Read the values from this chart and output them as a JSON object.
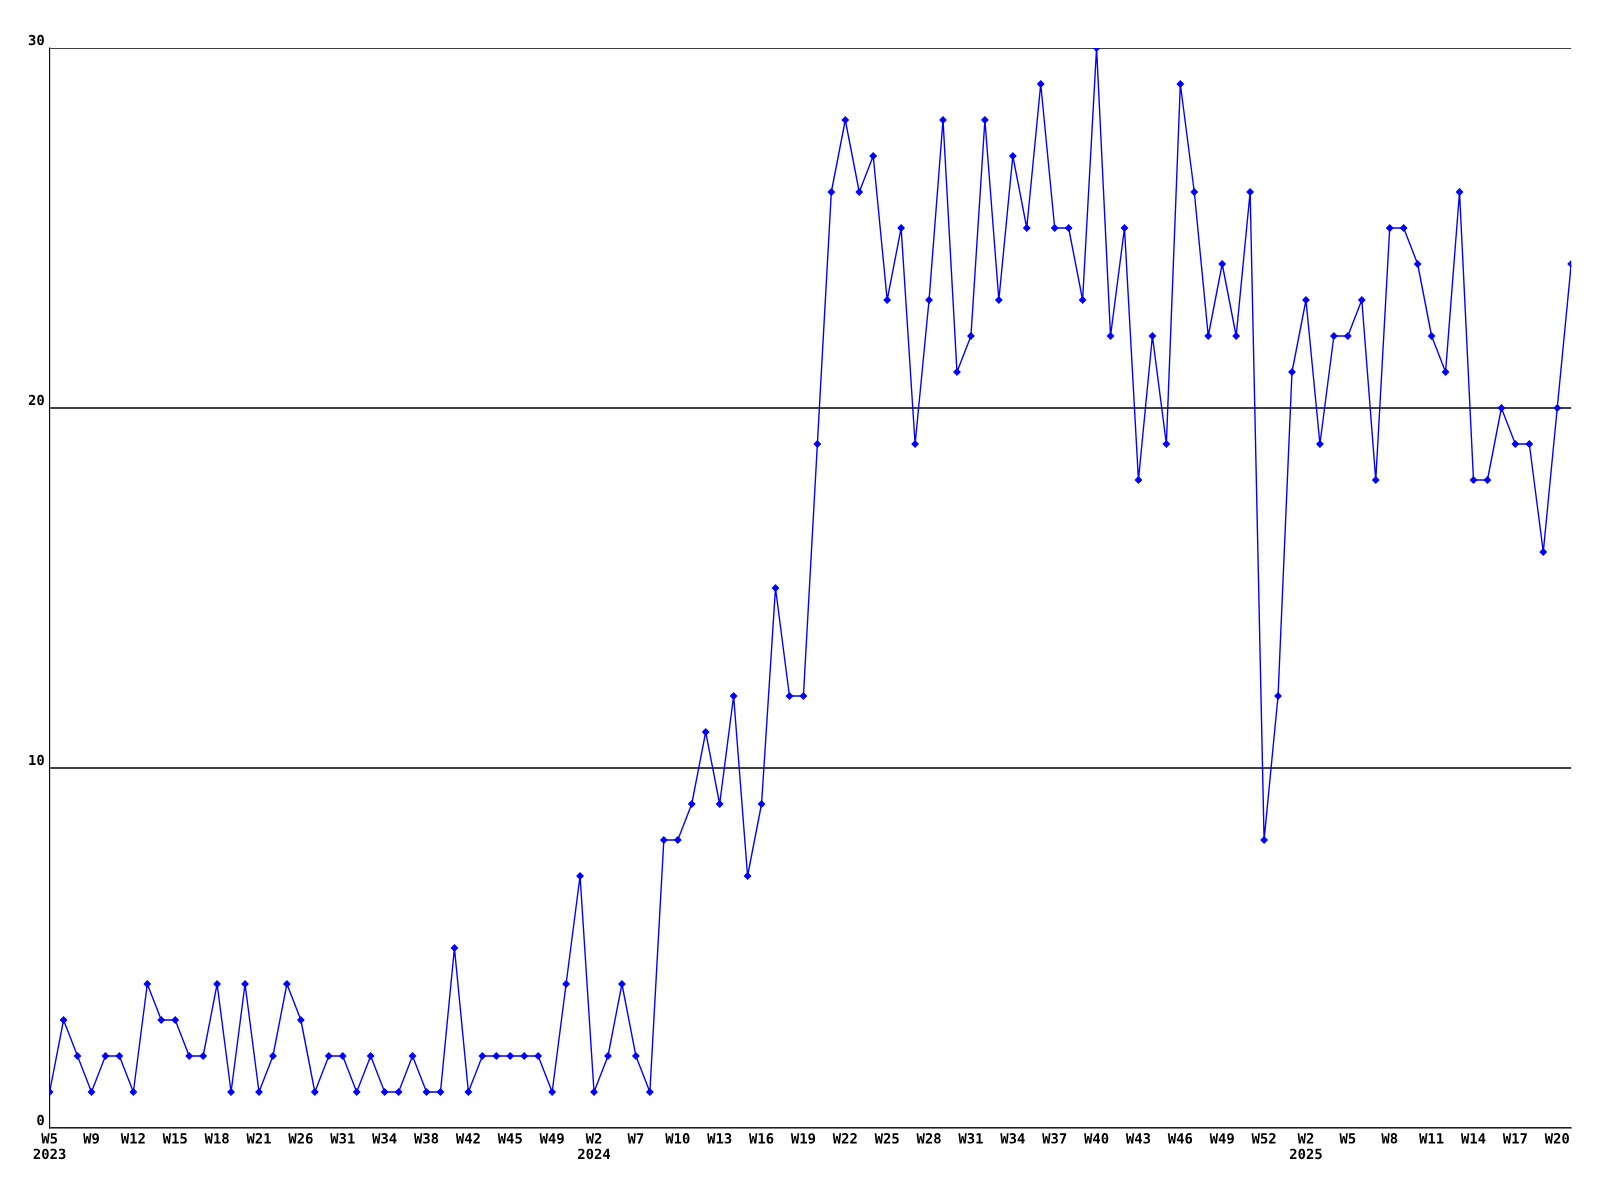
{
  "chart_data": {
    "type": "line",
    "categories": [
      "W5\n2023",
      null,
      null,
      "W9",
      null,
      null,
      "W12",
      null,
      null,
      "W15",
      null,
      null,
      "W18",
      null,
      null,
      "W21",
      null,
      null,
      "W26",
      null,
      null,
      "W31",
      null,
      null,
      "W34",
      null,
      null,
      "W38",
      null,
      null,
      "W42",
      null,
      null,
      "W45",
      null,
      null,
      "W49",
      null,
      null,
      "W2\n2024",
      null,
      null,
      "W7",
      null,
      null,
      "W10",
      null,
      null,
      "W13",
      null,
      null,
      "W16",
      null,
      null,
      "W19",
      null,
      null,
      "W22",
      null,
      null,
      "W25",
      null,
      null,
      "W28",
      null,
      null,
      "W31",
      null,
      null,
      "W34",
      null,
      null,
      "W37",
      null,
      null,
      "W40",
      null,
      null,
      "W43",
      null,
      null,
      "W46",
      null,
      null,
      "W49",
      null,
      null,
      "W52",
      null,
      null,
      "W2\n2025",
      null,
      null,
      "W5",
      null,
      null,
      "W8",
      null,
      null,
      "W11",
      null,
      null,
      "W14",
      null,
      null,
      "W17",
      null,
      null,
      "W20",
      null
    ],
    "series": [
      {
        "color": "#0000ff",
        "values": [
          1,
          3,
          2,
          1,
          2,
          2,
          1,
          4,
          3,
          3,
          2,
          2,
          4,
          1,
          4,
          1,
          2,
          4,
          3,
          1,
          2,
          2,
          1,
          2,
          1,
          1,
          2,
          1,
          1,
          5,
          1,
          2,
          2,
          2,
          2,
          2,
          1,
          4,
          7,
          1,
          2,
          4,
          2,
          1,
          8,
          8,
          9,
          11,
          9,
          12,
          7,
          9,
          15,
          12,
          12,
          19,
          26,
          28,
          26,
          27,
          23,
          25,
          19,
          23,
          28,
          21,
          22,
          28,
          23,
          27,
          25,
          29,
          25,
          25,
          23,
          30,
          22,
          25,
          18,
          22,
          19,
          29,
          26,
          22,
          24,
          22,
          26,
          8,
          12,
          21,
          23,
          19,
          22,
          22,
          23,
          18,
          25,
          25,
          24,
          22,
          21,
          26,
          18,
          18,
          20,
          19,
          19,
          16,
          20,
          24
        ]
      }
    ],
    "ylim": [
      0,
      30
    ],
    "yticks": [
      0,
      10,
      20,
      30
    ],
    "grid": "y",
    "marker": "diamond",
    "line_style": "solid",
    "legend": false
  }
}
